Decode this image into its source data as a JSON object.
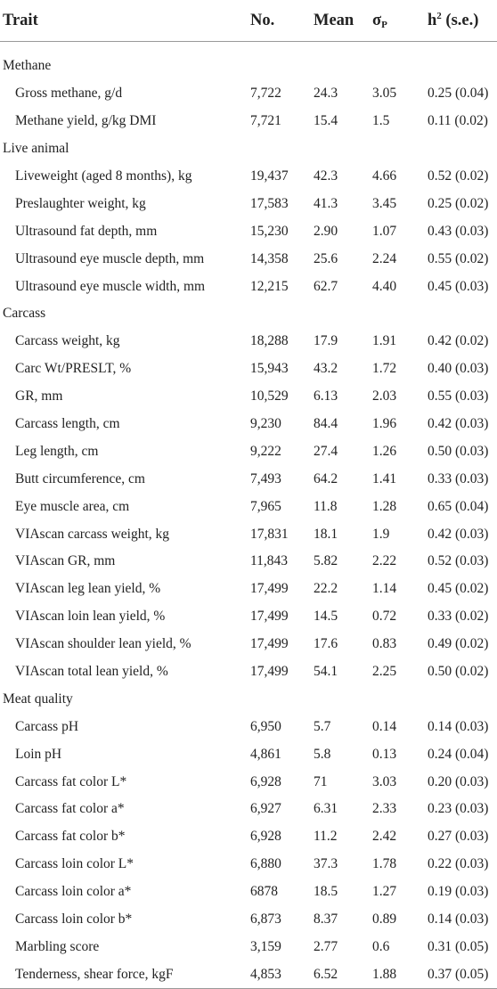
{
  "header": {
    "trait": "Trait",
    "no": "No.",
    "mean": "Mean",
    "sigma_symbol": "σ",
    "sigma_sub": "P",
    "h2_base": "h",
    "h2_sup": "2",
    "h2_rest": " (s.e.)"
  },
  "groups": [
    {
      "label": "Methane",
      "rows": [
        {
          "trait": "Gross methane, g/d",
          "no": "7,722",
          "mean": "24.3",
          "sd": "3.05",
          "h2": "0.25 (0.04)"
        },
        {
          "trait": "Methane yield, g/kg DMI",
          "no": "7,721",
          "mean": "15.4",
          "sd": "1.5",
          "h2": "0.11 (0.02)"
        }
      ]
    },
    {
      "label": "Live animal",
      "rows": [
        {
          "trait": "Liveweight (aged 8 months), kg",
          "no": "19,437",
          "mean": "42.3",
          "sd": "4.66",
          "h2": "0.52 (0.02)"
        },
        {
          "trait": "Preslaughter weight, kg",
          "no": "17,583",
          "mean": "41.3",
          "sd": "3.45",
          "h2": "0.25 (0.02)"
        },
        {
          "trait": "Ultrasound fat depth, mm",
          "no": "15,230",
          "mean": "2.90",
          "sd": "1.07",
          "h2": "0.43 (0.03)"
        },
        {
          "trait": "Ultrasound eye muscle depth, mm",
          "no": "14,358",
          "mean": "25.6",
          "sd": "2.24",
          "h2": "0.55 (0.02)"
        },
        {
          "trait": "Ultrasound eye muscle width, mm",
          "no": "12,215",
          "mean": "62.7",
          "sd": "4.40",
          "h2": "0.45 (0.03)"
        }
      ]
    },
    {
      "label": "Carcass",
      "rows": [
        {
          "trait": "Carcass weight, kg",
          "no": "18,288",
          "mean": "17.9",
          "sd": "1.91",
          "h2": "0.42 (0.02)"
        },
        {
          "trait": "Carc Wt/PRESLT, %",
          "no": "15,943",
          "mean": "43.2",
          "sd": "1.72",
          "h2": "0.40 (0.03)"
        },
        {
          "trait": "GR, mm",
          "no": "10,529",
          "mean": "6.13",
          "sd": "2.03",
          "h2": "0.55 (0.03)"
        },
        {
          "trait": "Carcass length, cm",
          "no": "9,230",
          "mean": "84.4",
          "sd": "1.96",
          "h2": "0.42 (0.03)"
        },
        {
          "trait": "Leg length, cm",
          "no": "9,222",
          "mean": "27.4",
          "sd": "1.26",
          "h2": "0.50 (0.03)"
        },
        {
          "trait": "Butt circumference, cm",
          "no": "7,493",
          "mean": "64.2",
          "sd": "1.41",
          "h2": "0.33 (0.03)"
        },
        {
          "trait": "Eye muscle area, cm",
          "no": "7,965",
          "mean": "11.8",
          "sd": "1.28",
          "h2": "0.65 (0.04)"
        },
        {
          "trait": "VIAscan carcass weight, kg",
          "no": "17,831",
          "mean": "18.1",
          "sd": "1.9",
          "h2": "0.42 (0.03)"
        },
        {
          "trait": "VIAscan GR, mm",
          "no": "11,843",
          "mean": "5.82",
          "sd": "2.22",
          "h2": "0.52 (0.03)"
        },
        {
          "trait": "VIAscan leg lean yield, %",
          "no": "17,499",
          "mean": "22.2",
          "sd": "1.14",
          "h2": "0.45 (0.02)"
        },
        {
          "trait": "VIAscan loin lean yield, %",
          "no": "17,499",
          "mean": "14.5",
          "sd": "0.72",
          "h2": "0.33 (0.02)"
        },
        {
          "trait": "VIAscan shoulder lean yield, %",
          "no": "17,499",
          "mean": "17.6",
          "sd": "0.83",
          "h2": "0.49 (0.02)"
        },
        {
          "trait": "VIAscan total lean yield, %",
          "no": "17,499",
          "mean": "54.1",
          "sd": "2.25",
          "h2": "0.50 (0.02)"
        }
      ]
    },
    {
      "label": "Meat quality",
      "rows": [
        {
          "trait": "Carcass pH",
          "no": "6,950",
          "mean": "5.7",
          "sd": "0.14",
          "h2": "0.14 (0.03)"
        },
        {
          "trait": "Loin pH",
          "no": "4,861",
          "mean": "5.8",
          "sd": "0.13",
          "h2": "0.24 (0.04)"
        },
        {
          "trait": "Carcass fat color L*",
          "no": "6,928",
          "mean": "71",
          "sd": "3.03",
          "h2": "0.20 (0.03)"
        },
        {
          "trait": "Carcass fat color a*",
          "no": "6,927",
          "mean": "6.31",
          "sd": "2.33",
          "h2": "0.23 (0.03)"
        },
        {
          "trait": "Carcass fat color b*",
          "no": "6,928",
          "mean": "11.2",
          "sd": "2.42",
          "h2": "0.27 (0.03)"
        },
        {
          "trait": "Carcass loin color L*",
          "no": "6,880",
          "mean": "37.3",
          "sd": "1.78",
          "h2": "0.22 (0.03)"
        },
        {
          "trait": "Carcass loin color a*",
          "no": "6878",
          "mean": "18.5",
          "sd": "1.27",
          "h2": "0.19 (0.03)"
        },
        {
          "trait": "Carcass loin color b*",
          "no": "6,873",
          "mean": "8.37",
          "sd": "0.89",
          "h2": "0.14 (0.03)"
        },
        {
          "trait": "Marbling score",
          "no": "3,159",
          "mean": "2.77",
          "sd": "0.6",
          "h2": "0.31 (0.05)"
        },
        {
          "trait": "Tenderness, shear force, kgF",
          "no": "4,853",
          "mean": "6.52",
          "sd": "1.88",
          "h2": "0.37 (0.05)"
        }
      ]
    }
  ]
}
